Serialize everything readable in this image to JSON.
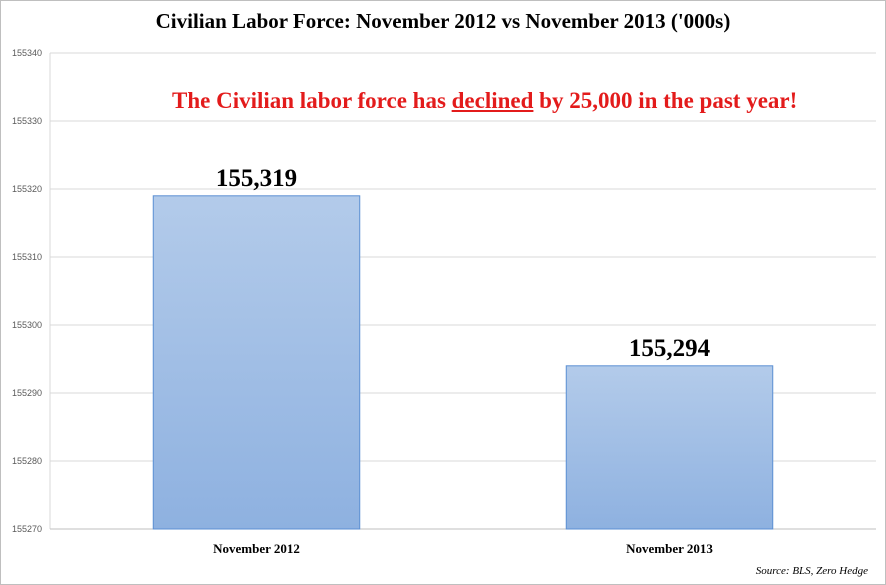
{
  "chart_data": {
    "type": "bar",
    "title": "Civilian Labor Force: November 2012 vs November 2013 ('000s)",
    "categories": [
      "November 2012",
      "November 2013"
    ],
    "values": [
      155319,
      155294
    ],
    "data_labels": [
      "155,319",
      "155,294"
    ],
    "ylim": [
      155270,
      155340
    ],
    "yticks": [
      155270,
      155280,
      155290,
      155300,
      155310,
      155320,
      155330,
      155340
    ],
    "ytick_labels": [
      "155270",
      "155280",
      "155290",
      "155300",
      "155310",
      "155320",
      "155330",
      "155340"
    ],
    "grid": true,
    "annotation": {
      "before": "The Civilian labor force has ",
      "emphasis": "declined",
      "after": " by 25,000 in the past year!"
    },
    "source": "Source: BLS, Zero Hedge",
    "colors": {
      "bar_top": "#b3cbea",
      "bar_bottom": "#8eb1e0",
      "bar_stroke": "#5b8fd3",
      "annotation": "#e31b1b"
    }
  }
}
